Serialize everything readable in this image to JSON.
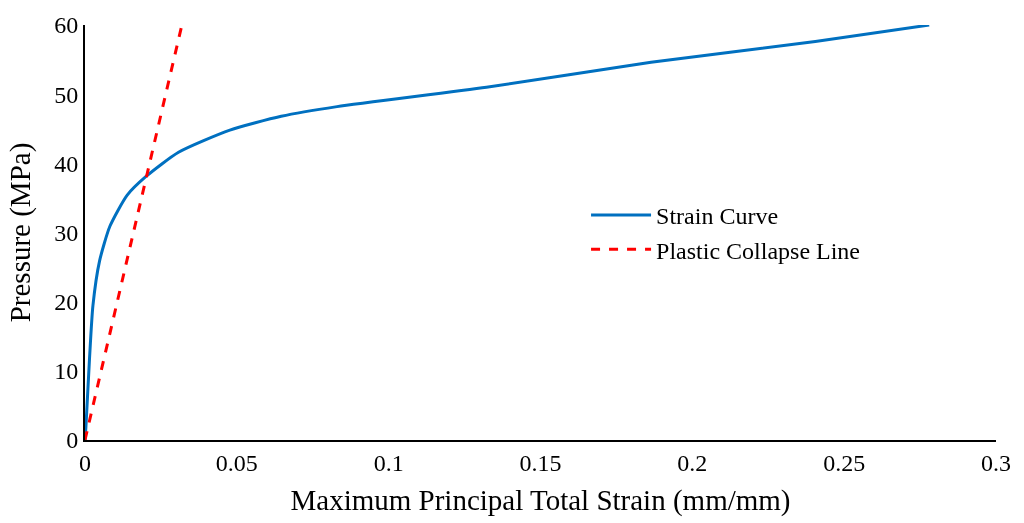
{
  "chart_data": {
    "type": "line",
    "xlabel": "Maximum Principal Total Strain (mm/mm)",
    "ylabel": "Pressure (MPa)",
    "xlim": [
      0,
      0.3
    ],
    "xticks": [
      0,
      0.05,
      0.1,
      0.15,
      0.2,
      0.25,
      0.3
    ],
    "ylim": [
      0,
      60
    ],
    "yticks": [
      0,
      10,
      20,
      30,
      40,
      50,
      60
    ],
    "legend": "right",
    "series": [
      {
        "name": "Strain Curve",
        "color": "#0070c0",
        "line_style": "solid",
        "x": [
          0,
          0.0003,
          0.0015,
          0.0026,
          0.0048,
          0.0082,
          0.0139,
          0.0201,
          0.0308,
          0.0477,
          0.0646,
          0.083,
          0.1322,
          0.1864,
          0.2405,
          0.278
        ],
        "values": [
          0,
          1.9,
          11.9,
          19.4,
          25.9,
          30.9,
          35.4,
          38.1,
          41.6,
          44.8,
          46.8,
          48.2,
          51.0,
          54.6,
          57.6,
          60
        ]
      },
      {
        "name": "Plastic Collapse Line",
        "color": "#ff0000",
        "line_style": "dashed",
        "x": [
          0,
          0.0319
        ],
        "values": [
          0,
          60
        ]
      }
    ]
  }
}
